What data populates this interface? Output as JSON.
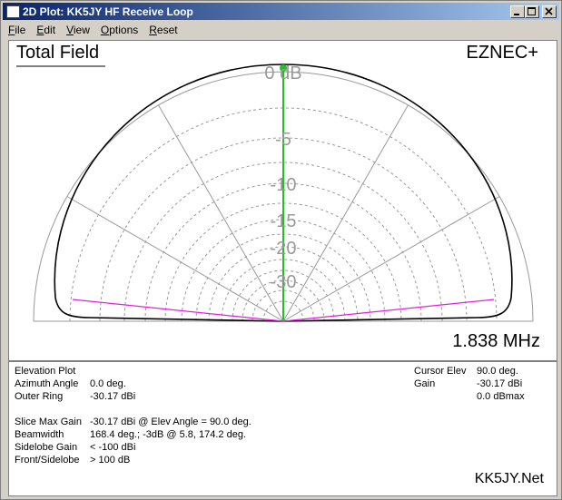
{
  "window": {
    "title": "2D Plot: KK5JY HF Receive Loop"
  },
  "menu": [
    "File",
    "Edit",
    "View",
    "Options",
    "Reset"
  ],
  "plot": {
    "title": "Total Field",
    "brand": "EZNEC+",
    "frequency": "1.838 MHz",
    "ring_labels": [
      "0 dB",
      "-5",
      "-10",
      "-15",
      "-20",
      "-30"
    ]
  },
  "info": {
    "plot_type": "Elevation Plot",
    "settings": [
      [
        "Azimuth Angle",
        "0.0 deg."
      ],
      [
        "Outer Ring",
        "-30.17 dBi"
      ]
    ],
    "stats": [
      [
        "Slice Max Gain",
        "-30.17 dBi @ Elev Angle = 90.0 deg."
      ],
      [
        "Beamwidth",
        "168.4 deg.; -3dB @ 5.8, 174.2 deg."
      ],
      [
        "Sidelobe Gain",
        "< -100 dBi"
      ],
      [
        "Front/Sidelobe",
        "> 100 dB"
      ]
    ],
    "cursor": [
      [
        "Cursor Elev",
        "90.0 deg."
      ],
      [
        "Gain",
        "-30.17 dBi"
      ]
    ],
    "cursor_relative": "0.0 dBmax",
    "footer": "KK5JY.Net"
  }
}
